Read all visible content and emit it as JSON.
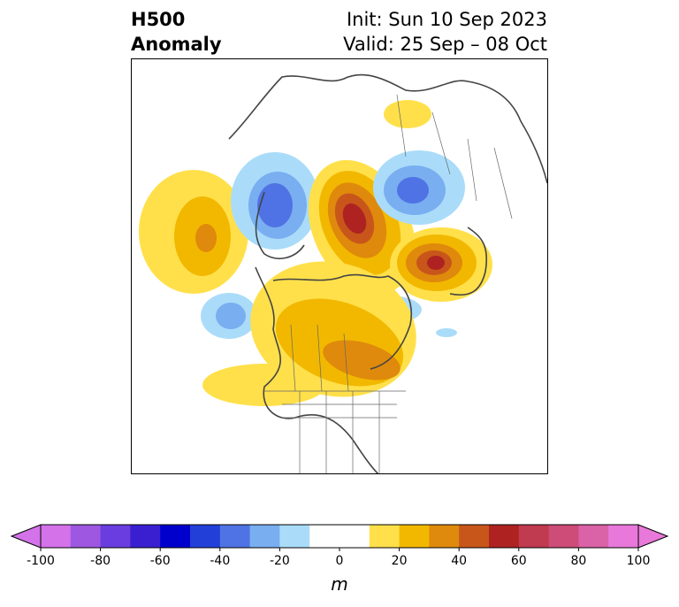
{
  "title": {
    "left_line1": "H500",
    "left_line2": "Anomaly",
    "right_line1": "Init: Sun 10 Sep 2023",
    "right_line2": "Valid: 25 Sep – 08 Oct"
  },
  "colorbar": {
    "unit": "m",
    "ticks": [
      "-100",
      "-80",
      "-60",
      "-40",
      "-20",
      "0",
      "20",
      "40",
      "60",
      "80",
      "100"
    ],
    "levels": [
      -100,
      -90,
      -80,
      -70,
      -60,
      -50,
      -40,
      -30,
      -20,
      -10,
      10,
      20,
      30,
      40,
      50,
      60,
      70,
      80,
      90,
      100
    ],
    "colors": [
      "#d472ea",
      "#9d57e0",
      "#6a3de0",
      "#3a1fd0",
      "#0000cc",
      "#2240d8",
      "#4f73e4",
      "#79aef0",
      "#aadcfa",
      "#ffffff",
      "#ffe04a",
      "#f2b800",
      "#df8a0c",
      "#c8561a",
      "#ae2322",
      "#c03a50",
      "#cd4c78",
      "#da62a6",
      "#e878da"
    ],
    "under_color": "#d472ea",
    "over_color": "#e878da"
  },
  "map": {
    "region": "North America / Arctic polar stereographic",
    "colors": {
      "y1": "#ffe04a",
      "y2": "#f2b800",
      "o1": "#df8a0c",
      "o2": "#c8561a",
      "r1": "#ae2322",
      "b1": "#aadcfa",
      "b2": "#79aef0",
      "b3": "#4f73e4"
    }
  }
}
